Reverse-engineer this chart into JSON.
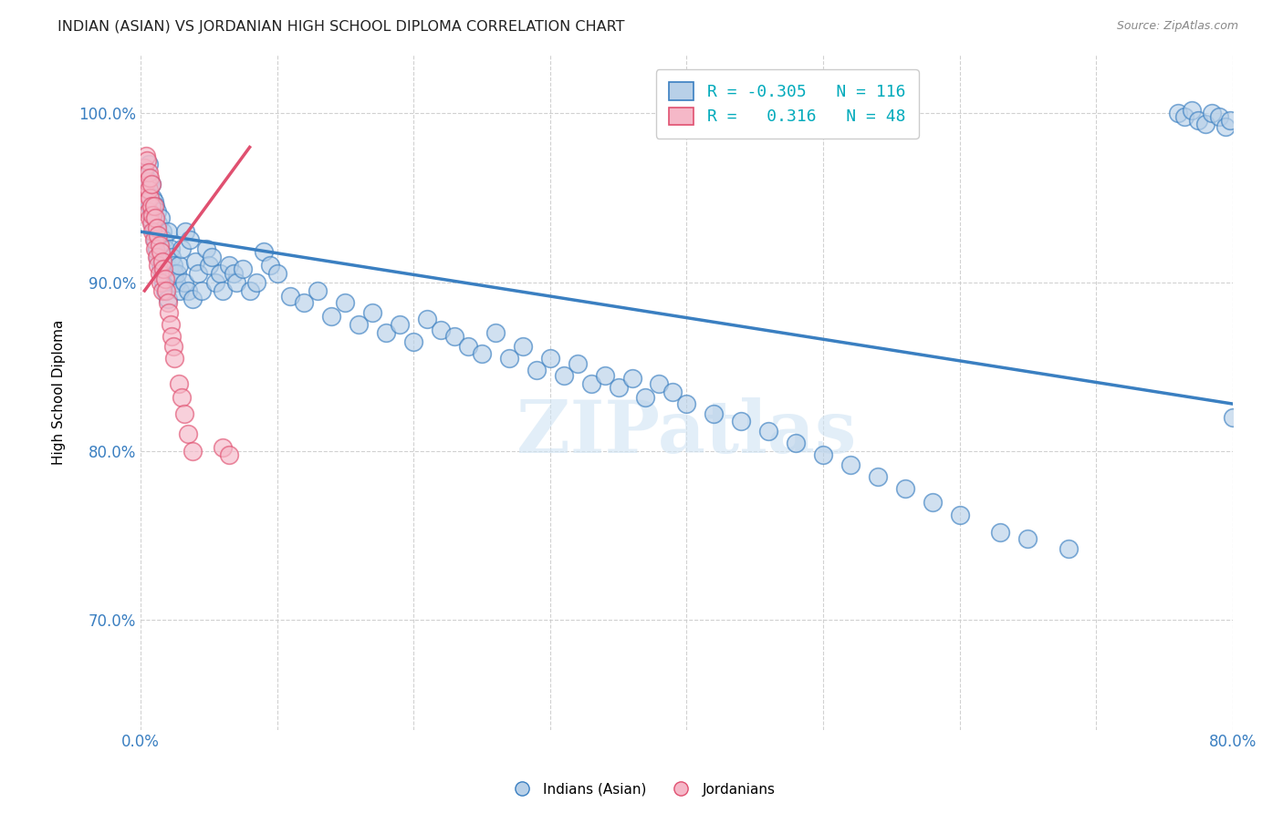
{
  "title": "INDIAN (ASIAN) VS JORDANIAN HIGH SCHOOL DIPLOMA CORRELATION CHART",
  "source": "Source: ZipAtlas.com",
  "ylabel": "High School Diploma",
  "xlim": [
    0.0,
    0.8
  ],
  "ylim": [
    0.635,
    1.035
  ],
  "x_ticks": [
    0.0,
    0.1,
    0.2,
    0.3,
    0.4,
    0.5,
    0.6,
    0.7,
    0.8
  ],
  "x_tick_labels": [
    "0.0%",
    "",
    "",
    "",
    "",
    "",
    "",
    "",
    "80.0%"
  ],
  "y_ticks": [
    0.7,
    0.8,
    0.9,
    1.0
  ],
  "y_tick_labels": [
    "70.0%",
    "80.0%",
    "90.0%",
    "100.0%"
  ],
  "legend_indian_r": "-0.305",
  "legend_indian_n": "116",
  "legend_jordan_r": "0.316",
  "legend_jordan_n": "48",
  "indian_color": "#b8d0e8",
  "jordanian_color": "#f5b8c8",
  "trend_indian_color": "#3a7fc1",
  "trend_jordan_color": "#e05070",
  "watermark": "ZIPatlas",
  "trend_indian_x0": 0.0,
  "trend_indian_y0": 0.93,
  "trend_indian_x1": 0.8,
  "trend_indian_y1": 0.828,
  "trend_jordan_x0": 0.003,
  "trend_jordan_y0": 0.895,
  "trend_jordan_x1": 0.08,
  "trend_jordan_y1": 0.98,
  "indian_points_x": [
    0.003,
    0.004,
    0.005,
    0.006,
    0.007,
    0.007,
    0.008,
    0.008,
    0.009,
    0.009,
    0.01,
    0.01,
    0.011,
    0.011,
    0.012,
    0.012,
    0.013,
    0.013,
    0.014,
    0.015,
    0.015,
    0.016,
    0.016,
    0.017,
    0.017,
    0.018,
    0.018,
    0.019,
    0.02,
    0.02,
    0.021,
    0.022,
    0.023,
    0.024,
    0.025,
    0.026,
    0.027,
    0.028,
    0.029,
    0.03,
    0.032,
    0.033,
    0.035,
    0.036,
    0.038,
    0.04,
    0.042,
    0.045,
    0.048,
    0.05,
    0.052,
    0.055,
    0.058,
    0.06,
    0.065,
    0.068,
    0.07,
    0.075,
    0.08,
    0.085,
    0.09,
    0.095,
    0.1,
    0.11,
    0.12,
    0.13,
    0.14,
    0.15,
    0.16,
    0.17,
    0.18,
    0.19,
    0.2,
    0.21,
    0.22,
    0.23,
    0.24,
    0.25,
    0.26,
    0.27,
    0.28,
    0.29,
    0.3,
    0.31,
    0.32,
    0.33,
    0.34,
    0.35,
    0.36,
    0.37,
    0.38,
    0.39,
    0.4,
    0.42,
    0.44,
    0.46,
    0.48,
    0.5,
    0.52,
    0.54,
    0.56,
    0.58,
    0.6,
    0.63,
    0.65,
    0.68,
    0.76,
    0.765,
    0.77,
    0.775,
    0.78,
    0.785,
    0.79,
    0.795,
    0.798,
    0.8
  ],
  "indian_points_y": [
    0.965,
    0.96,
    0.955,
    0.97,
    0.945,
    0.96,
    0.94,
    0.958,
    0.935,
    0.95,
    0.948,
    0.93,
    0.945,
    0.925,
    0.942,
    0.92,
    0.935,
    0.915,
    0.928,
    0.938,
    0.91,
    0.93,
    0.905,
    0.925,
    0.9,
    0.92,
    0.895,
    0.915,
    0.93,
    0.89,
    0.908,
    0.92,
    0.915,
    0.91,
    0.905,
    0.9,
    0.905,
    0.91,
    0.895,
    0.92,
    0.9,
    0.93,
    0.895,
    0.925,
    0.89,
    0.912,
    0.905,
    0.895,
    0.92,
    0.91,
    0.915,
    0.9,
    0.905,
    0.895,
    0.91,
    0.905,
    0.9,
    0.908,
    0.895,
    0.9,
    0.918,
    0.91,
    0.905,
    0.892,
    0.888,
    0.895,
    0.88,
    0.888,
    0.875,
    0.882,
    0.87,
    0.875,
    0.865,
    0.878,
    0.872,
    0.868,
    0.862,
    0.858,
    0.87,
    0.855,
    0.862,
    0.848,
    0.855,
    0.845,
    0.852,
    0.84,
    0.845,
    0.838,
    0.843,
    0.832,
    0.84,
    0.835,
    0.828,
    0.822,
    0.818,
    0.812,
    0.805,
    0.798,
    0.792,
    0.785,
    0.778,
    0.77,
    0.762,
    0.752,
    0.748,
    0.742,
    1.0,
    0.998,
    1.002,
    0.996,
    0.994,
    1.0,
    0.998,
    0.992,
    0.996,
    0.82
  ],
  "jordan_points_x": [
    0.003,
    0.004,
    0.005,
    0.005,
    0.006,
    0.006,
    0.007,
    0.007,
    0.008,
    0.008,
    0.009,
    0.009,
    0.01,
    0.01,
    0.011,
    0.011,
    0.012,
    0.012,
    0.013,
    0.013,
    0.014,
    0.014,
    0.015,
    0.015,
    0.016,
    0.016,
    0.017,
    0.018,
    0.019,
    0.02,
    0.021,
    0.022,
    0.023,
    0.024,
    0.025,
    0.028,
    0.03,
    0.032,
    0.035,
    0.038,
    0.003,
    0.004,
    0.005,
    0.006,
    0.007,
    0.008,
    0.06,
    0.065
  ],
  "jordan_points_y": [
    0.958,
    0.952,
    0.96,
    0.948,
    0.955,
    0.942,
    0.95,
    0.938,
    0.945,
    0.935,
    0.94,
    0.93,
    0.945,
    0.925,
    0.938,
    0.92,
    0.932,
    0.915,
    0.928,
    0.91,
    0.922,
    0.905,
    0.918,
    0.9,
    0.912,
    0.895,
    0.908,
    0.902,
    0.895,
    0.888,
    0.882,
    0.875,
    0.868,
    0.862,
    0.855,
    0.84,
    0.832,
    0.822,
    0.81,
    0.8,
    0.968,
    0.975,
    0.972,
    0.965,
    0.962,
    0.958,
    0.802,
    0.798
  ]
}
